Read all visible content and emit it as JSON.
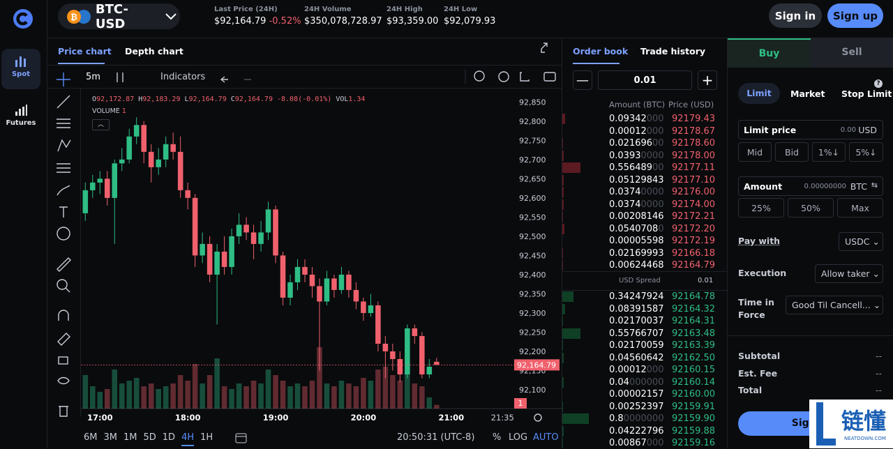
{
  "header": {
    "pair": "BTC-USD",
    "stats": [
      {
        "label": "Last Price (24H)",
        "value": "$92,164.79",
        "change": "-0.52%"
      },
      {
        "label": "24H Volume",
        "value": "$350,078,728.97"
      },
      {
        "label": "24H High",
        "value": "$93,359.00"
      },
      {
        "label": "24H Low",
        "value": "$92,079.93"
      }
    ],
    "sign_in": "Sign in",
    "sign_up": "Sign up"
  },
  "sidebar": [
    "Spot",
    "Futures"
  ],
  "chart_tabs": [
    "Price chart",
    "Depth chart"
  ],
  "toolbar": {
    "interval": "5m",
    "indicators": "Indicators"
  },
  "legend": {
    "o_label": "O",
    "o": "92,172.87",
    "h_label": "H",
    "h": "92,183.29",
    "l_label": "L",
    "l": "92,164.79",
    "c_label": "C",
    "c": "92,164.79",
    "change": "-8.08",
    "change_pct": "(-0.01%)",
    "vol_label": "VOL",
    "vol": "1.34",
    "volume_label": "VOLUME",
    "volume": "1"
  },
  "chart_data": {
    "type": "candlestick",
    "x": [
      "16:50",
      "16:55",
      "17:00",
      "17:05",
      "17:10",
      "17:15",
      "17:20",
      "17:25",
      "17:30",
      "17:35",
      "17:40",
      "17:45",
      "17:50",
      "17:55",
      "18:00",
      "18:05",
      "18:10",
      "18:15",
      "18:20",
      "18:25",
      "18:30",
      "18:35",
      "18:40",
      "18:45",
      "18:50",
      "18:55",
      "19:00",
      "19:05",
      "19:10",
      "19:15",
      "19:20",
      "19:25",
      "19:30",
      "19:35",
      "19:40",
      "19:45",
      "19:50",
      "19:55",
      "20:00",
      "20:05",
      "20:10",
      "20:15",
      "20:20",
      "20:25",
      "20:30",
      "20:35",
      "20:40",
      "20:45",
      "20:50"
    ],
    "open": [
      92560,
      92620,
      92640,
      92650,
      92600,
      92690,
      92700,
      92760,
      92790,
      92720,
      92680,
      92700,
      92740,
      92720,
      92620,
      92600,
      92450,
      92480,
      92400,
      92460,
      92420,
      92500,
      92530,
      92510,
      92480,
      92510,
      92570,
      92450,
      92340,
      92380,
      92420,
      92400,
      92370,
      92330,
      92390,
      92360,
      92400,
      92360,
      92330,
      92300,
      92320,
      92220,
      92200,
      92180,
      92140,
      92260,
      92240,
      92140,
      92172.87
    ],
    "high": [
      92640,
      92660,
      92670,
      92670,
      92700,
      92730,
      92780,
      92810,
      92800,
      92740,
      92730,
      92760,
      92770,
      92760,
      92640,
      92610,
      92510,
      92500,
      92480,
      92500,
      92520,
      92560,
      92550,
      92530,
      92540,
      92590,
      92580,
      92460,
      92400,
      92440,
      92440,
      92420,
      92390,
      92410,
      92400,
      92420,
      92410,
      92380,
      92340,
      92350,
      92330,
      92240,
      92220,
      92200,
      92270,
      92270,
      92250,
      92180,
      92183.29
    ],
    "low": [
      92540,
      92600,
      92610,
      92580,
      92480,
      92670,
      92690,
      92740,
      92690,
      92640,
      92660,
      92680,
      92700,
      92600,
      92570,
      92420,
      92430,
      92380,
      92270,
      92400,
      92400,
      92480,
      92490,
      92440,
      92460,
      92490,
      92430,
      92320,
      92320,
      92360,
      92380,
      92340,
      92150,
      92320,
      92340,
      92350,
      92340,
      92310,
      92280,
      92290,
      92200,
      92130,
      92150,
      92120,
      92130,
      92220,
      92130,
      92130,
      92164.79
    ],
    "close": [
      92620,
      92640,
      92650,
      92600,
      92690,
      92700,
      92760,
      92790,
      92720,
      92680,
      92700,
      92740,
      92720,
      92620,
      92600,
      92450,
      92480,
      92400,
      92460,
      92420,
      92500,
      92530,
      92510,
      92480,
      92510,
      92570,
      92450,
      92340,
      92380,
      92420,
      92400,
      92370,
      92330,
      92390,
      92360,
      92400,
      92360,
      92330,
      92300,
      92320,
      92220,
      92200,
      92180,
      92140,
      92260,
      92240,
      92140,
      92160,
      92164.79
    ],
    "volume": [
      12,
      8,
      6,
      7,
      14,
      9,
      10,
      11,
      8,
      9,
      7,
      8,
      9,
      12,
      10,
      16,
      9,
      12,
      18,
      8,
      7,
      9,
      8,
      10,
      9,
      14,
      12,
      10,
      8,
      9,
      8,
      10,
      22,
      9,
      8,
      10,
      9,
      8,
      11,
      10,
      14,
      15,
      12,
      10,
      13,
      9,
      8,
      4,
      1.34
    ],
    "xlim": [
      "16:47",
      "21:43"
    ],
    "xticks": [
      "17:00",
      "18:00",
      "19:00",
      "20:00",
      "21:00",
      "21:35"
    ],
    "ylim": [
      92051,
      92885
    ],
    "yticks": [
      {
        "value": 92850,
        "label": "92,850"
      },
      {
        "value": 92800,
        "label": "92,800"
      },
      {
        "value": 92750,
        "label": "92,750"
      },
      {
        "value": 92700,
        "label": "92,700"
      },
      {
        "value": 92650,
        "label": "92,650"
      },
      {
        "value": 92600,
        "label": "92,600"
      },
      {
        "value": 92550,
        "label": "92,550"
      },
      {
        "value": 92500,
        "label": "92,500"
      },
      {
        "value": 92450,
        "label": "92,450"
      },
      {
        "value": 92400,
        "label": "92,400"
      },
      {
        "value": 92350,
        "label": "92,350"
      },
      {
        "value": 92300,
        "label": "92,300"
      },
      {
        "value": 92250,
        "label": "92,250"
      },
      {
        "value": 92200,
        "label": "92,200"
      },
      {
        "value": 92150,
        "label": "92,150"
      },
      {
        "value": 92100,
        "label": "92,100"
      }
    ],
    "volume_ylim": [
      0,
      30
    ],
    "up_color": "#2ebd85",
    "down_color": "#f0616d",
    "last_price_label": "92,164.79",
    "last_volume_label": "1"
  },
  "range_bar": {
    "ranges": [
      "6M",
      "3M",
      "1M",
      "5D",
      "1D",
      "4H",
      "1H"
    ],
    "active_range": "4H",
    "clock": "20:50:31 (UTC-8)",
    "pct": "%",
    "log": "LOG",
    "auto": "AUTO"
  },
  "order_book": {
    "tabs": [
      "Order book",
      "Trade history"
    ],
    "step": "0.01",
    "headers": [
      "Amount (BTC)",
      "Price (USD)"
    ],
    "asks": [
      {
        "amount": "0.09342000",
        "price": "92179.43"
      },
      {
        "amount": "0.00012000",
        "price": "92178.67"
      },
      {
        "amount": "0.02169600",
        "price": "92178.60"
      },
      {
        "amount": "0.03930000",
        "price": "92178.00"
      },
      {
        "amount": "0.55648900",
        "price": "92177.11"
      },
      {
        "amount": "0.05129843",
        "price": "92177.10"
      },
      {
        "amount": "0.03740000",
        "price": "92176.00"
      },
      {
        "amount": "0.03740000",
        "price": "92174.00"
      },
      {
        "amount": "0.00208146",
        "price": "92172.21"
      },
      {
        "amount": "0.05407080",
        "price": "92172.20"
      },
      {
        "amount": "0.00005598",
        "price": "92172.19"
      },
      {
        "amount": "0.02169993",
        "price": "92166.18"
      },
      {
        "amount": "0.00624468",
        "price": "92164.79"
      }
    ],
    "spread_label": "USD Spread",
    "spread": "0.01",
    "bids": [
      {
        "amount": "0.34247924",
        "price": "92164.78"
      },
      {
        "amount": "0.08391587",
        "price": "92164.32"
      },
      {
        "amount": "0.02170037",
        "price": "92164.31"
      },
      {
        "amount": "0.55766707",
        "price": "92163.48"
      },
      {
        "amount": "0.02170059",
        "price": "92163.39"
      },
      {
        "amount": "0.04560642",
        "price": "92162.50"
      },
      {
        "amount": "0.00012000",
        "price": "92160.15"
      },
      {
        "amount": "0.04000000",
        "price": "92160.14"
      },
      {
        "amount": "0.00002157",
        "price": "92160.00"
      },
      {
        "amount": "0.00252397",
        "price": "92159.91"
      },
      {
        "amount": "0.80000000",
        "price": "92159.90"
      },
      {
        "amount": "0.04222796",
        "price": "92159.88"
      },
      {
        "amount": "0.00867000",
        "price": "92159.16"
      }
    ]
  },
  "trade": {
    "tabs": [
      "Buy",
      "Sell"
    ],
    "order_types": [
      "Limit",
      "Market",
      "Stop Limit"
    ],
    "limit_price": {
      "label": "Limit price",
      "value": "0.00",
      "unit": "USD"
    },
    "price_buttons": [
      "Mid",
      "Bid",
      "1%↓",
      "5%↓"
    ],
    "amount": {
      "label": "Amount",
      "value": "0.00000000",
      "unit": "BTC"
    },
    "amount_buttons": [
      "25%",
      "50%",
      "Max"
    ],
    "pay_with": {
      "label": "Pay with",
      "value": "USDC"
    },
    "execution": {
      "label": "Execution",
      "value": "Allow taker"
    },
    "time_in_force": {
      "label": "Time in Force",
      "value": "Good Til Cancell..."
    },
    "summary": [
      {
        "label": "Subtotal",
        "value": "--"
      },
      {
        "label": "Est. Fee",
        "value": "--"
      },
      {
        "label": "Total",
        "value": "--"
      }
    ],
    "submit": "Sign in"
  },
  "watermark": {
    "logo": "链懂",
    "site": "NEATDOWN.COM"
  }
}
